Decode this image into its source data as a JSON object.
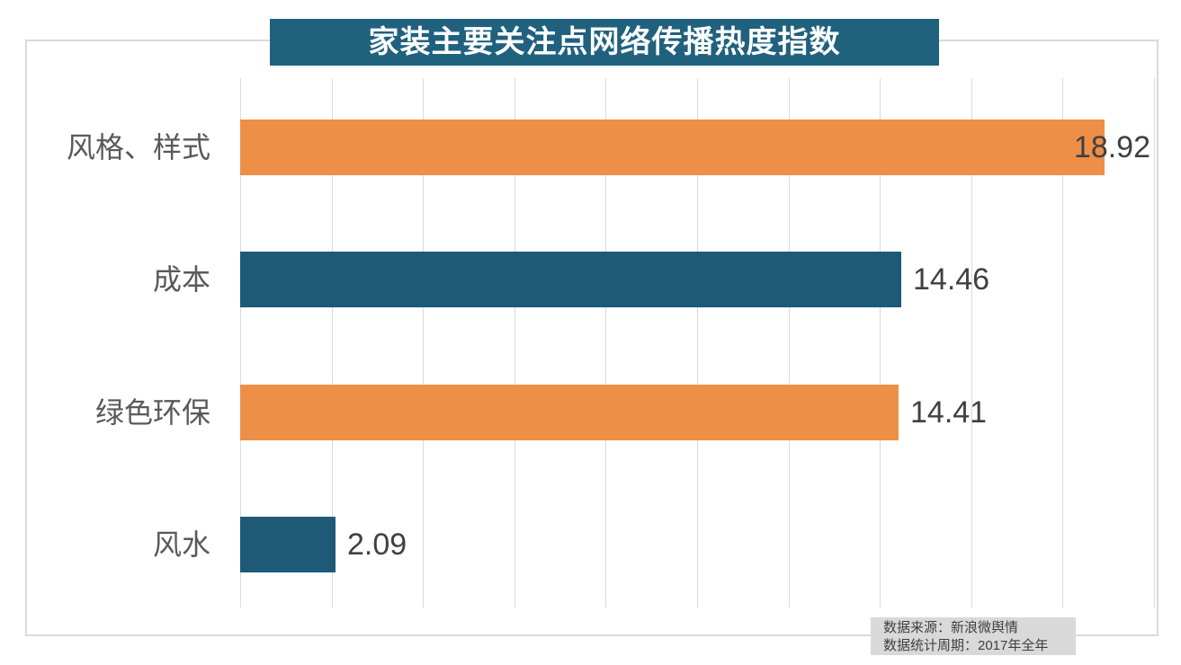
{
  "title": {
    "text": "家装主要关注点网络传播热度指数",
    "bg_color": "#20617E",
    "text_color": "#FFFFFF"
  },
  "source_note": {
    "lines": [
      "数据来源：新浪微舆情",
      "数据统计周期：2017年全年"
    ],
    "bg_color": "#D9D9D9",
    "text_color": "#3F3F3F"
  },
  "chart_data": {
    "type": "bar",
    "orientation": "horizontal",
    "title": "家装主要关注点网络传播热度指数",
    "categories": [
      "风格、样式",
      "成本",
      "绿色环保",
      "风水"
    ],
    "values": [
      18.92,
      14.46,
      14.41,
      2.09
    ],
    "data_labels": [
      "18.92",
      "14.46",
      "14.41",
      "2.09"
    ],
    "bar_colors": [
      "#EE8F47",
      "#1E5A78",
      "#EE8F47",
      "#1E5A78"
    ],
    "xlim": [
      0,
      20
    ],
    "grid": {
      "axis": "x",
      "step": 2,
      "color": "#DADADA"
    },
    "legend": null,
    "category_label_color": "#595959",
    "value_label_color": "#404040",
    "annotations": [
      "数据来源：新浪微舆情",
      "数据统计周期：2017年全年"
    ]
  },
  "colors": {
    "frame_border": "#DADADA",
    "background": "#FFFFFF"
  }
}
